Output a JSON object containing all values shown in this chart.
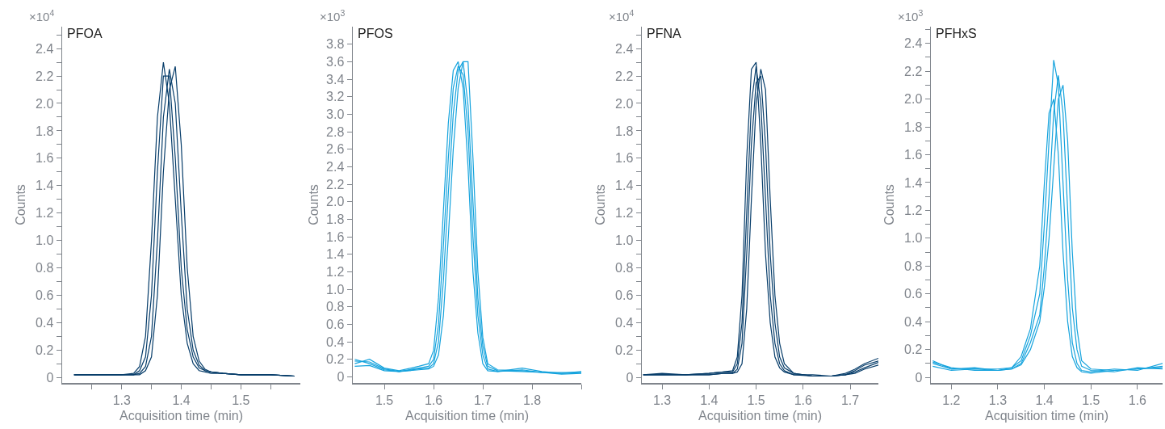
{
  "chart_data": [
    {
      "type": "line",
      "title": "PFOA",
      "xlabel": "Acquisition time (min)",
      "ylabel": "Counts",
      "annotations": [
        "×10$^{4}$"
      ],
      "grid": false,
      "marker": "none",
      "line_style": "solid",
      "xlim": [
        1.2,
        1.6
      ],
      "ylim": [
        -0.04,
        2.56
      ],
      "xticks": [
        {
          "value": 1.25,
          "label": null
        },
        1.3,
        {
          "value": 1.35,
          "label": null
        },
        1.4,
        {
          "value": 1.45,
          "label": null
        },
        1.5,
        {
          "value": 1.55,
          "label": null
        }
      ],
      "yticks": [
        0,
        {
          "value": 0.1,
          "label": null
        },
        0.2,
        {
          "value": 0.3,
          "label": null
        },
        0.4,
        {
          "value": 0.5,
          "label": null
        },
        0.6,
        {
          "value": 0.7,
          "label": null
        },
        0.8,
        {
          "value": 0.9,
          "label": null
        },
        {
          "value": 1,
          "label": "1.0"
        },
        {
          "value": 1.1,
          "label": null
        },
        1.2,
        {
          "value": 1.3,
          "label": null
        },
        1.4,
        {
          "value": 1.5,
          "label": null
        },
        1.6,
        {
          "value": 1.7,
          "label": null
        },
        1.8,
        {
          "value": 1.9,
          "label": null
        },
        {
          "value": 2,
          "label": "2.0"
        },
        {
          "value": 2.1,
          "label": null
        },
        2.2,
        {
          "value": 2.3,
          "label": null
        },
        2.4,
        {
          "value": 2.5,
          "label": null
        }
      ],
      "x": [
        1.22,
        1.3,
        1.32,
        1.33,
        1.34,
        1.35,
        1.36,
        1.37,
        1.38,
        1.39,
        1.4,
        1.41,
        1.42,
        1.43,
        1.44,
        1.45,
        1.47,
        1.5,
        1.55,
        1.59
      ],
      "series": [
        {
          "color": "#073d6a",
          "values": [
            0.02,
            0.02,
            0.03,
            0.08,
            0.3,
            1.0,
            1.9,
            2.3,
            2.0,
            1.3,
            0.6,
            0.25,
            0.1,
            0.05,
            0.04,
            0.03,
            0.03,
            0.02,
            0.02,
            0.01
          ]
        },
        {
          "color": "#073d6a",
          "values": [
            0.02,
            0.02,
            0.02,
            0.05,
            0.15,
            0.6,
            1.5,
            2.2,
            2.2,
            1.6,
            0.8,
            0.35,
            0.15,
            0.07,
            0.05,
            0.04,
            0.03,
            0.02,
            0.02,
            0.01
          ]
        },
        {
          "color": "#073d6a",
          "values": [
            0.02,
            0.02,
            0.02,
            0.03,
            0.08,
            0.3,
            1.0,
            1.9,
            2.25,
            2.0,
            1.2,
            0.5,
            0.2,
            0.09,
            0.05,
            0.04,
            0.03,
            0.02,
            0.02,
            0.01
          ]
        },
        {
          "color": "#073d6a",
          "values": [
            0.02,
            0.02,
            0.02,
            0.02,
            0.05,
            0.15,
            0.6,
            1.5,
            2.1,
            2.27,
            1.7,
            0.8,
            0.3,
            0.12,
            0.06,
            0.04,
            0.03,
            0.02,
            0.02,
            0.01
          ]
        }
      ]
    },
    {
      "type": "line",
      "title": "PFOS",
      "xlabel": "Acquisition time (min)",
      "ylabel": "Counts",
      "annotations": [
        "×10$^{3}$"
      ],
      "grid": false,
      "marker": "none",
      "line_style": "solid",
      "xlim": [
        1.436,
        1.9
      ],
      "ylim": [
        -0.07,
        4.0
      ],
      "xticks": [
        1.5,
        1.6,
        1.7,
        1.8,
        {
          "value": 1.9,
          "label": null
        }
      ],
      "yticks": [
        0,
        0.2,
        0.4,
        0.6,
        0.8,
        {
          "value": 1,
          "label": "1.0"
        },
        1.2,
        1.4,
        1.6,
        1.8,
        {
          "value": 2,
          "label": "2.0"
        },
        2.2,
        2.4,
        2.6,
        2.8,
        {
          "value": 3,
          "label": "3.0"
        },
        3.2,
        3.4,
        3.6,
        3.8
      ],
      "x": [
        1.44,
        1.47,
        1.5,
        1.53,
        1.57,
        1.59,
        1.6,
        1.61,
        1.62,
        1.63,
        1.64,
        1.65,
        1.66,
        1.67,
        1.68,
        1.69,
        1.7,
        1.71,
        1.73,
        1.78,
        1.82,
        1.86,
        1.9
      ],
      "series": [
        {
          "color": "#15a3dd",
          "values": [
            0.15,
            0.2,
            0.1,
            0.07,
            0.12,
            0.15,
            0.3,
            0.9,
            1.9,
            2.9,
            3.5,
            3.6,
            3.3,
            2.4,
            1.2,
            0.5,
            0.15,
            0.07,
            0.06,
            0.08,
            0.05,
            0.05,
            0.05
          ]
        },
        {
          "color": "#15a3dd",
          "values": [
            0.2,
            0.15,
            0.08,
            0.06,
            0.1,
            0.12,
            0.2,
            0.6,
            1.5,
            2.5,
            3.3,
            3.55,
            3.45,
            2.8,
            1.6,
            0.7,
            0.25,
            0.09,
            0.06,
            0.1,
            0.06,
            0.04,
            0.06
          ]
        },
        {
          "color": "#15a3dd",
          "values": [
            0.12,
            0.13,
            0.07,
            0.06,
            0.09,
            0.1,
            0.15,
            0.4,
            1.1,
            2.1,
            3.0,
            3.5,
            3.6,
            3.1,
            2.0,
            0.9,
            0.35,
            0.12,
            0.07,
            0.06,
            0.05,
            0.03,
            0.04
          ]
        },
        {
          "color": "#15a3dd",
          "values": [
            0.18,
            0.17,
            0.09,
            0.06,
            0.08,
            0.09,
            0.12,
            0.25,
            0.7,
            1.6,
            2.6,
            3.3,
            3.6,
            3.6,
            2.5,
            1.2,
            0.45,
            0.15,
            0.08,
            0.07,
            0.05,
            0.04,
            0.05
          ]
        }
      ]
    },
    {
      "type": "line",
      "title": "PFNA",
      "xlabel": "Acquisition time (min)",
      "ylabel": "Counts",
      "annotations": [
        "×10$^{4}$"
      ],
      "grid": false,
      "marker": "none",
      "line_style": "solid",
      "xlim": [
        1.257,
        1.76
      ],
      "ylim": [
        -0.04,
        2.56
      ],
      "xticks": [
        1.3,
        1.4,
        1.5,
        1.6,
        1.7
      ],
      "yticks": [
        0,
        {
          "value": 0.1,
          "label": null
        },
        0.2,
        {
          "value": 0.3,
          "label": null
        },
        0.4,
        {
          "value": 0.5,
          "label": null
        },
        0.6,
        {
          "value": 0.7,
          "label": null
        },
        0.8,
        {
          "value": 0.9,
          "label": null
        },
        {
          "value": 1,
          "label": "1.0"
        },
        {
          "value": 1.1,
          "label": null
        },
        1.2,
        {
          "value": 1.3,
          "label": null
        },
        1.4,
        {
          "value": 1.5,
          "label": null
        },
        1.6,
        {
          "value": 1.7,
          "label": null
        },
        1.8,
        {
          "value": 1.9,
          "label": null
        },
        {
          "value": 2,
          "label": "2.0"
        },
        {
          "value": 2.1,
          "label": null
        },
        2.2,
        {
          "value": 2.3,
          "label": null
        },
        2.4,
        {
          "value": 2.5,
          "label": null
        }
      ],
      "x": [
        1.26,
        1.3,
        1.35,
        1.4,
        1.43,
        1.45,
        1.46,
        1.47,
        1.48,
        1.49,
        1.5,
        1.51,
        1.52,
        1.53,
        1.54,
        1.55,
        1.56,
        1.58,
        1.62,
        1.66,
        1.69,
        1.71,
        1.73,
        1.76
      ],
      "series": [
        {
          "color": "#073d6a",
          "values": [
            0.02,
            0.03,
            0.02,
            0.03,
            0.04,
            0.05,
            0.15,
            0.6,
            1.6,
            2.25,
            2.3,
            1.7,
            0.9,
            0.4,
            0.15,
            0.07,
            0.04,
            0.02,
            0.02,
            0.01,
            0.03,
            0.06,
            0.1,
            0.14
          ]
        },
        {
          "color": "#073d6a",
          "values": [
            0.02,
            0.02,
            0.02,
            0.03,
            0.04,
            0.04,
            0.1,
            0.4,
            1.2,
            2.0,
            2.27,
            2.0,
            1.3,
            0.6,
            0.25,
            0.1,
            0.05,
            0.02,
            0.01,
            0.01,
            0.02,
            0.05,
            0.09,
            0.12
          ]
        },
        {
          "color": "#073d6a",
          "values": [
            0.02,
            0.02,
            0.02,
            0.02,
            0.03,
            0.03,
            0.06,
            0.25,
            0.9,
            1.7,
            2.15,
            2.2,
            1.7,
            0.9,
            0.4,
            0.15,
            0.07,
            0.03,
            0.01,
            0.01,
            0.02,
            0.04,
            0.07,
            0.11
          ]
        },
        {
          "color": "#073d6a",
          "values": [
            0.02,
            0.02,
            0.02,
            0.02,
            0.03,
            0.03,
            0.04,
            0.1,
            0.5,
            1.3,
            2.0,
            2.25,
            2.1,
            1.3,
            0.6,
            0.25,
            0.1,
            0.03,
            0.01,
            0.01,
            0.02,
            0.03,
            0.06,
            0.09
          ]
        }
      ]
    },
    {
      "type": "line",
      "title": "PFHxS",
      "xlabel": "Acquisition time (min)",
      "ylabel": "Counts",
      "annotations": [
        "×10$^{3}$"
      ],
      "grid": false,
      "marker": "none",
      "line_style": "solid",
      "xlim": [
        1.156,
        1.654
      ],
      "ylim": [
        -0.04,
        2.52
      ],
      "xticks": [
        1.2,
        1.3,
        1.4,
        1.5,
        1.6
      ],
      "yticks": [
        0,
        {
          "value": 0.1,
          "label": null
        },
        0.2,
        {
          "value": 0.3,
          "label": null
        },
        0.4,
        {
          "value": 0.5,
          "label": null
        },
        0.6,
        {
          "value": 0.7,
          "label": null
        },
        0.8,
        {
          "value": 0.9,
          "label": null
        },
        {
          "value": 1,
          "label": "1.0"
        },
        {
          "value": 1.1,
          "label": null
        },
        1.2,
        {
          "value": 1.3,
          "label": null
        },
        1.4,
        {
          "value": 1.5,
          "label": null
        },
        1.6,
        {
          "value": 1.7,
          "label": null
        },
        1.8,
        {
          "value": 1.9,
          "label": null
        },
        {
          "value": 2,
          "label": "2.0"
        },
        {
          "value": 2.1,
          "label": null
        },
        2.2,
        {
          "value": 2.3,
          "label": null
        },
        2.4,
        {
          "value": 2.5,
          "label": null
        }
      ],
      "x": [
        1.16,
        1.2,
        1.25,
        1.3,
        1.33,
        1.35,
        1.37,
        1.39,
        1.4,
        1.41,
        1.42,
        1.43,
        1.44,
        1.45,
        1.46,
        1.47,
        1.48,
        1.5,
        1.55,
        1.6,
        1.654
      ],
      "series": [
        {
          "color": "#15a3dd",
          "values": [
            0.12,
            0.06,
            0.07,
            0.05,
            0.07,
            0.15,
            0.35,
            0.8,
            1.4,
            1.9,
            2.0,
            1.6,
            0.9,
            0.4,
            0.15,
            0.07,
            0.04,
            0.03,
            0.05,
            0.06,
            0.08
          ]
        },
        {
          "color": "#15a3dd",
          "values": [
            0.1,
            0.06,
            0.06,
            0.06,
            0.07,
            0.12,
            0.3,
            0.6,
            1.1,
            1.7,
            2.28,
            2.1,
            1.4,
            0.7,
            0.25,
            0.1,
            0.05,
            0.04,
            0.06,
            0.05,
            0.1
          ]
        },
        {
          "color": "#15a3dd",
          "values": [
            0.08,
            0.05,
            0.06,
            0.05,
            0.06,
            0.1,
            0.25,
            0.45,
            0.8,
            1.3,
            1.9,
            2.17,
            1.9,
            1.2,
            0.5,
            0.2,
            0.08,
            0.05,
            0.04,
            0.07,
            0.06
          ]
        },
        {
          "color": "#15a3dd",
          "values": [
            0.11,
            0.07,
            0.05,
            0.05,
            0.06,
            0.09,
            0.2,
            0.4,
            0.65,
            1.0,
            1.5,
            2.0,
            2.1,
            1.7,
            0.9,
            0.35,
            0.12,
            0.06,
            0.05,
            0.06,
            0.07
          ]
        }
      ]
    }
  ]
}
